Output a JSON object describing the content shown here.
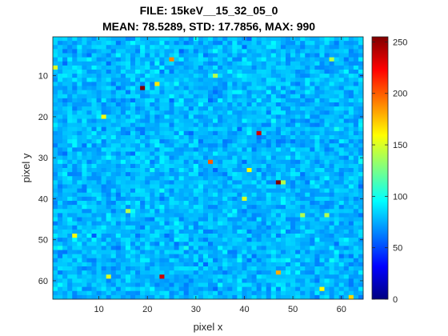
{
  "chart_data": {
    "type": "heatmap",
    "title_lines": [
      "FILE: 15keV__15_32_05_0",
      "MEAN: 78.5289, STD: 17.7856, MAX: 990"
    ],
    "xlabel": "pixel x",
    "ylabel": "pixel y",
    "grid": false,
    "colormap": "jet",
    "xlim": [
      0.5,
      64.5
    ],
    "ylim": [
      0.5,
      64.5
    ],
    "y_direction": "reversed",
    "x_ticks": [
      10,
      20,
      30,
      40,
      50,
      60
    ],
    "y_ticks": [
      10,
      20,
      30,
      40,
      50,
      60
    ],
    "clim": [
      0,
      255
    ],
    "colorbar_ticks": [
      0,
      50,
      100,
      150,
      200,
      250
    ],
    "grid_size": [
      64,
      64
    ],
    "base_value_estimate": 78,
    "notable_pixels": [
      {
        "x": 1,
        "y": 8,
        "value": 150
      },
      {
        "x": 19,
        "y": 13,
        "value": 255
      },
      {
        "x": 22,
        "y": 12,
        "value": 165
      },
      {
        "x": 25,
        "y": 6,
        "value": 190
      },
      {
        "x": 11,
        "y": 20,
        "value": 160
      },
      {
        "x": 43,
        "y": 24,
        "value": 235
      },
      {
        "x": 33,
        "y": 31,
        "value": 200
      },
      {
        "x": 47,
        "y": 36,
        "value": 255
      },
      {
        "x": 48,
        "y": 36,
        "value": 140
      },
      {
        "x": 41,
        "y": 33,
        "value": 160
      },
      {
        "x": 40,
        "y": 40,
        "value": 150
      },
      {
        "x": 16,
        "y": 43,
        "value": 140
      },
      {
        "x": 5,
        "y": 49,
        "value": 160
      },
      {
        "x": 23,
        "y": 59,
        "value": 235
      },
      {
        "x": 47,
        "y": 58,
        "value": 180
      },
      {
        "x": 12,
        "y": 59,
        "value": 150
      },
      {
        "x": 56,
        "y": 62,
        "value": 160
      },
      {
        "x": 62,
        "y": 64,
        "value": 170
      },
      {
        "x": 58,
        "y": 6,
        "value": 140
      },
      {
        "x": 34,
        "y": 10,
        "value": 140
      },
      {
        "x": 52,
        "y": 44,
        "value": 140
      },
      {
        "x": 57,
        "y": 44,
        "value": 140
      }
    ]
  }
}
